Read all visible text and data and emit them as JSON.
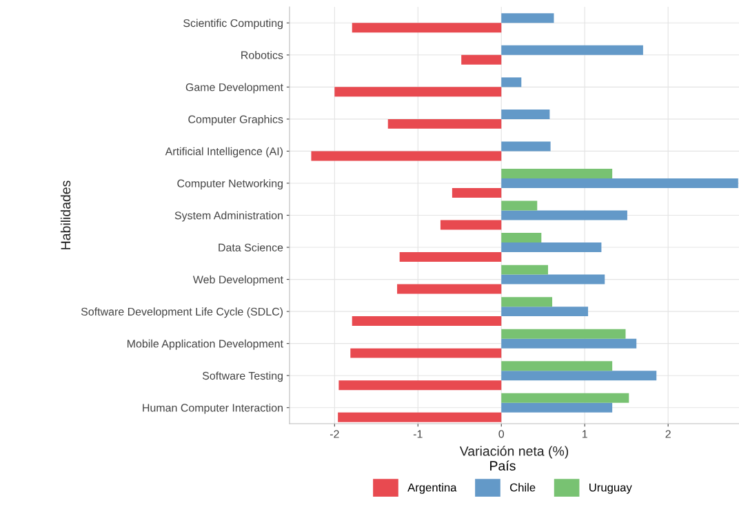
{
  "chart_data": {
    "type": "bar",
    "orientation": "horizontal",
    "xlabel": "Variación neta (%)",
    "ylabel": "Habilidades",
    "legend_title": "País",
    "categories": [
      "Scientific Computing",
      "Robotics",
      "Game Development",
      "Computer Graphics",
      "Artificial Intelligence (AI)",
      "Computer Networking",
      "System Administration",
      "Data Science",
      "Web Development",
      "Software Development Life Cycle (SDLC)",
      "Mobile Application Development",
      "Software Testing",
      "Human Computer Interaction"
    ],
    "series": [
      {
        "name": "Argentina",
        "color": "#e84a50",
        "values": [
          -1.79,
          -0.48,
          -2.0,
          -1.36,
          -2.28,
          -0.59,
          -0.73,
          -1.22,
          -1.25,
          -1.79,
          -1.81,
          -1.95,
          -1.96
        ]
      },
      {
        "name": "Chile",
        "color": "#6399c8",
        "values": [
          0.63,
          1.7,
          0.24,
          0.58,
          0.59,
          2.84,
          1.51,
          1.2,
          1.24,
          1.04,
          1.62,
          1.86,
          1.33
        ]
      },
      {
        "name": "Uruguay",
        "color": "#78c272",
        "values": [
          null,
          null,
          null,
          null,
          null,
          1.33,
          0.43,
          0.48,
          0.56,
          0.61,
          1.49,
          1.33,
          1.53
        ]
      }
    ],
    "xlim": [
      -2.54,
      2.85
    ],
    "xticks": [
      -2,
      -1,
      0,
      1,
      2
    ],
    "grid": true,
    "legend": "bottom"
  }
}
